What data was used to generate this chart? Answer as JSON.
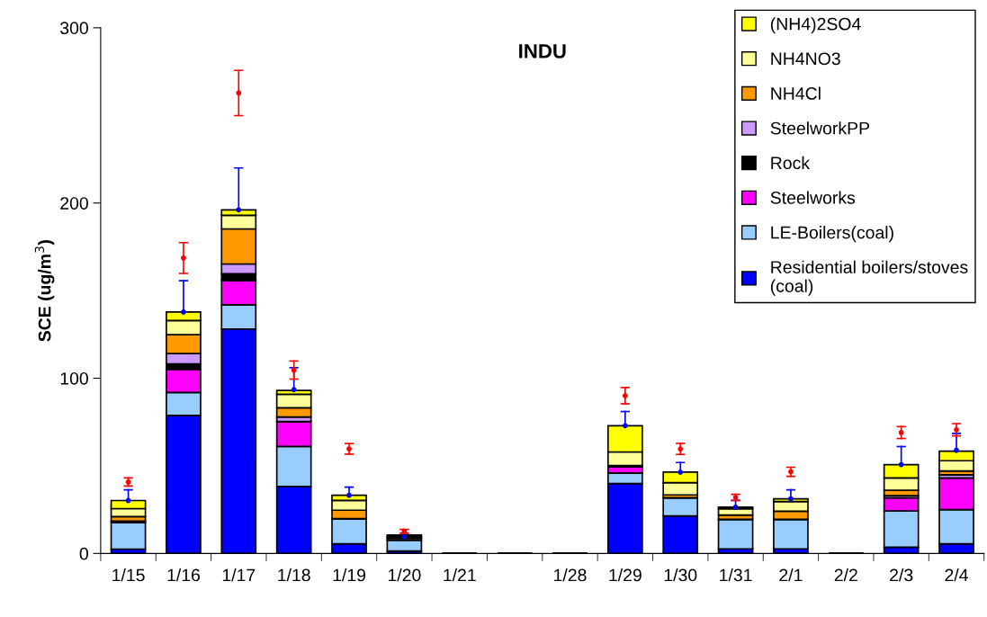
{
  "chart_data": {
    "type": "bar",
    "stacked": true,
    "title": "INDU",
    "ylabel": "SCE (ug/m$^{3}$)",
    "categories": [
      "1/15",
      "1/16",
      "1/17",
      "1/18",
      "1/19",
      "1/20",
      "1/21",
      null,
      "1/28",
      "1/29",
      "1/30",
      "1/31",
      "2/1",
      "2/2",
      "2/3",
      "2/4"
    ],
    "ylim": [
      0,
      300
    ],
    "yticks": [
      0,
      100,
      200,
      300
    ],
    "grid": false,
    "legend": "top right",
    "series": [
      {
        "name": "Residential boilers/stoves (coal)",
        "color": "#0000ff",
        "values": [
          2.5,
          78.8,
          128.1,
          38.3,
          5.5,
          1.4,
          0,
          0,
          0,
          39.9,
          21.4,
          2.6,
          2.6,
          0,
          3.6,
          5.5
        ]
      },
      {
        "name": "LE-Boilers(coal)",
        "color": "#99ccff",
        "values": [
          15,
          13.1,
          13.8,
          22.8,
          14.4,
          6.3,
          0,
          0,
          0,
          6.0,
          10.4,
          16.9,
          16.9,
          0,
          20.7,
          19.5
        ]
      },
      {
        "name": "Steelworks",
        "color": "#ff00ff",
        "values": [
          1,
          13.2,
          13.9,
          14.2,
          0,
          0,
          0,
          0,
          0,
          3.6,
          0,
          0,
          0,
          0,
          7.5,
          18.1
        ]
      },
      {
        "name": "Rock",
        "color": "#000000",
        "values": [
          0,
          3.1,
          3.8,
          0,
          0,
          0,
          0,
          0,
          0,
          0,
          0,
          0,
          0,
          0,
          0,
          0
        ]
      },
      {
        "name": "SteelworkPP",
        "color": "#cc99ff",
        "values": [
          0,
          5.9,
          5.6,
          2.6,
          0,
          0,
          0,
          0,
          0,
          0,
          0,
          0,
          0,
          0,
          1.2,
          1.8
        ]
      },
      {
        "name": "NH4Cl",
        "color": "#ff9900",
        "values": [
          2.5,
          10.8,
          20,
          5.2,
          4.8,
          1,
          0,
          0,
          0,
          0.7,
          1.6,
          2.4,
          4.6,
          0,
          3.1,
          2.2
        ]
      },
      {
        "name": "NH4NO3",
        "color": "#ffff99",
        "values": [
          4.6,
          8,
          7.8,
          7.7,
          5.6,
          0.9,
          0,
          0,
          0,
          7.7,
          7,
          3.6,
          5.5,
          0,
          7,
          5.8
        ]
      },
      {
        "name": "(NH4)2SO4",
        "color": "#ffff00",
        "values": [
          4.6,
          4.9,
          3.1,
          2.2,
          2.9,
          0.9,
          0,
          0,
          0,
          15,
          6,
          0.9,
          1.6,
          0,
          7.6,
          5.5
        ]
      },
      {
        "type": "scatter",
        "marker": "circle",
        "color": "#0000ff",
        "values": [
          30.2,
          137.8,
          196.1,
          93.5,
          33.2,
          9.5,
          null,
          null,
          null,
          72.9,
          46.4,
          26.4,
          31.2,
          null,
          50.7,
          58.9
        ],
        "errors": [
          [
            30.2,
            36.3
          ],
          [
            137.8,
            155.6
          ],
          [
            196.1,
            220
          ],
          [
            93.5,
            106
          ],
          [
            33.2,
            37.8
          ],
          [
            9.5,
            11.7
          ],
          null,
          null,
          null,
          [
            72.9,
            81
          ],
          [
            46.4,
            51.9
          ],
          [
            26.4,
            30.3
          ],
          [
            31.2,
            36.3
          ],
          null,
          [
            50.7,
            61
          ],
          [
            58.9,
            68.5
          ]
        ]
      },
      {
        "type": "scatter",
        "marker": "circle",
        "color": "#ff0000",
        "values": [
          40.8,
          168.6,
          262.8,
          104.6,
          59.7,
          12.6,
          null,
          null,
          null,
          90,
          59.6,
          32,
          46.6,
          null,
          69,
          70.6
        ],
        "errors": [
          [
            38.5,
            43.1
          ],
          [
            159.8,
            177.4
          ],
          [
            249.9,
            275.7
          ],
          [
            99.5,
            109.8
          ],
          [
            56.7,
            62.7
          ],
          [
            11.5,
            13.7
          ],
          null,
          null,
          null,
          [
            85.4,
            94.7
          ],
          [
            56.5,
            62.8
          ],
          [
            30.3,
            33.7
          ],
          [
            44,
            49.2
          ],
          null,
          [
            65.6,
            72.4
          ],
          [
            67.1,
            74.1
          ]
        ]
      }
    ]
  }
}
